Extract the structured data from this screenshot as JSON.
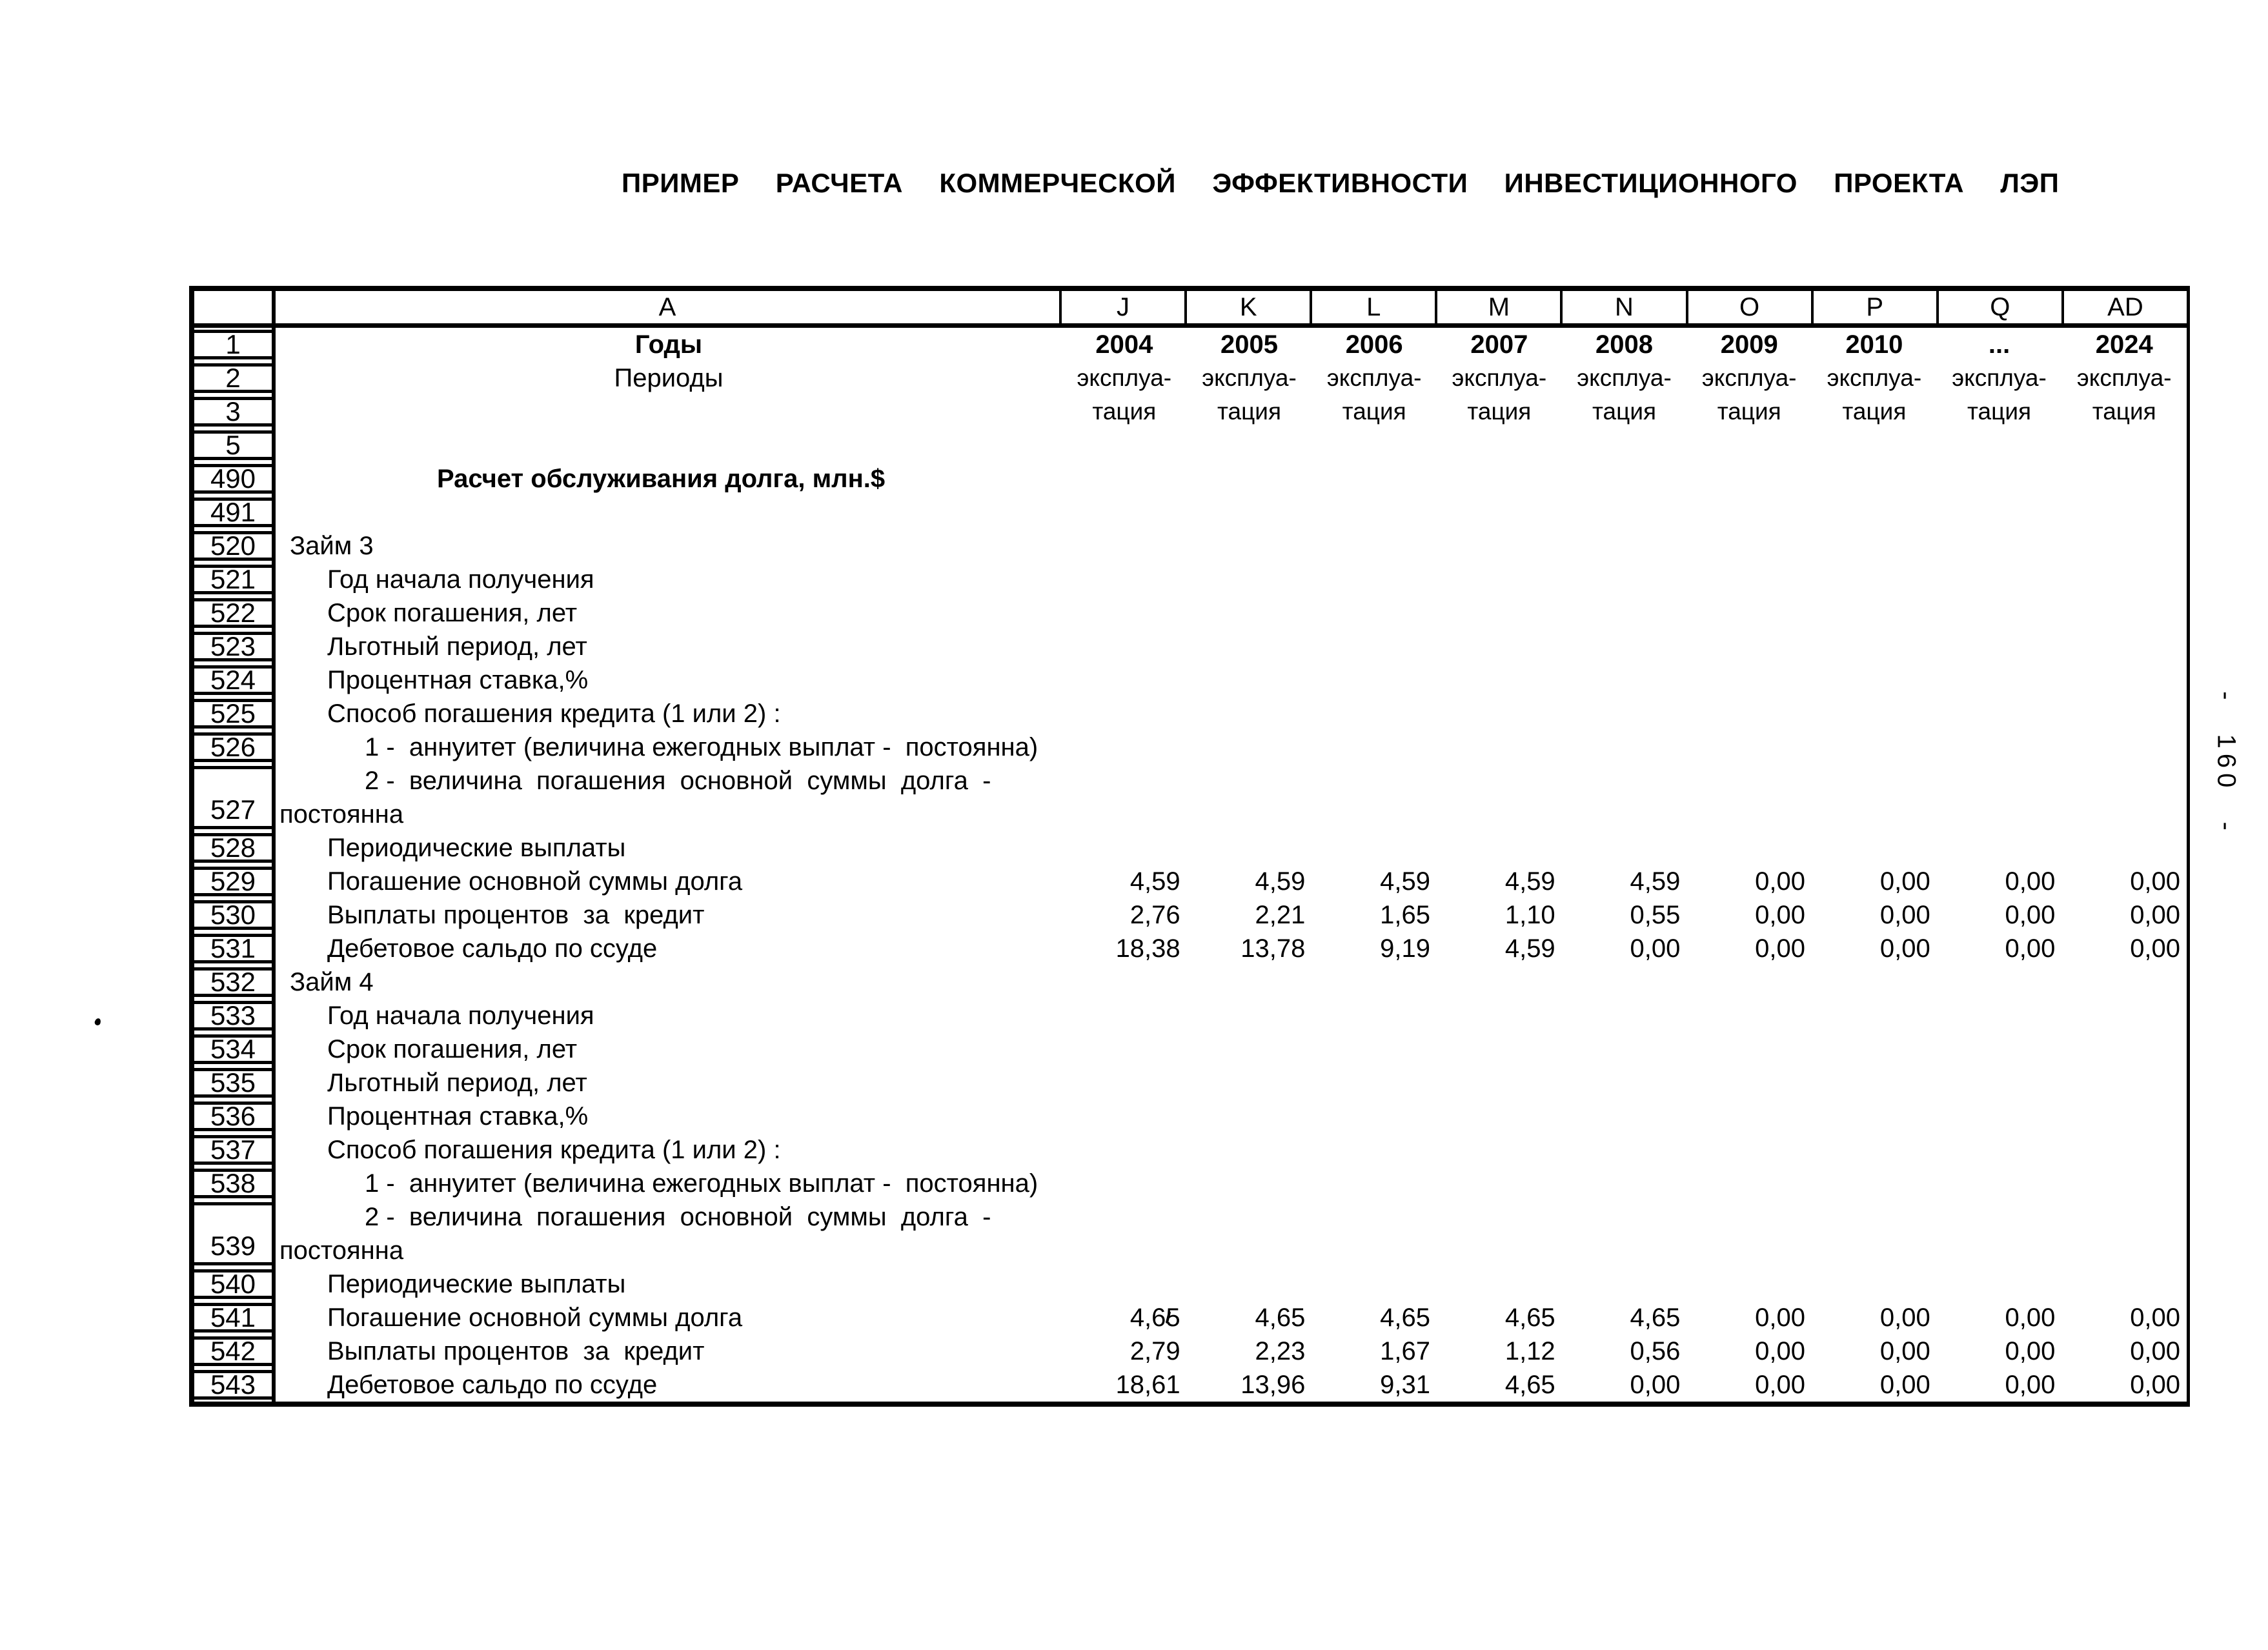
{
  "page": {
    "title": "ПРИМЕР  РАСЧЕТА  КОММЕРЧЕСКОЙ  ЭФФЕКТИВНОСТИ  ИНВЕСТИЦИОННОГО  ПРОЕКТА  ЛЭП",
    "page_number_vertical": "- 160 -"
  },
  "table": {
    "column_letters": [
      "A",
      "J",
      "K",
      "L",
      "M",
      "N",
      "O",
      "P",
      "Q",
      "AD"
    ],
    "rows": [
      {
        "num": "1",
        "a": "Годы",
        "indent": "center",
        "a_bold": true,
        "v_align": "center",
        "v_bold": true,
        "values": [
          "2004",
          "2005",
          "2006",
          "2007",
          "2008",
          "2009",
          "2010",
          "...",
          "2024"
        ]
      },
      {
        "num": "2",
        "a": "Периоды",
        "indent": "center",
        "v_align": "center",
        "v_small": true,
        "values": [
          "эксплуа-",
          "эксплуа-",
          "эксплуа-",
          "эксплуа-",
          "эксплуа-",
          "эксплуа-",
          "эксплуа-",
          "эксплуа-",
          "эксплуа-"
        ]
      },
      {
        "num": "3",
        "v_align": "center",
        "v_small": true,
        "values": [
          "тация",
          "тация",
          "тация",
          "тация",
          "тация",
          "тация",
          "тация",
          "тация",
          "тация"
        ]
      },
      {
        "num": "5"
      },
      {
        "num": "490",
        "a": "Расчет обслуживания долга, млн.$",
        "indent": "title",
        "a_bold": true
      },
      {
        "num": "491"
      },
      {
        "num": "520",
        "a": "Займ 3",
        "indent": 1
      },
      {
        "num": "521",
        "a": "Год начала получения",
        "indent": 2
      },
      {
        "num": "522",
        "a": "Срок погашения, лет",
        "indent": 2
      },
      {
        "num": "523",
        "a": "Льготный период, лет",
        "indent": 2
      },
      {
        "num": "524",
        "a": "Процентная ставка,%",
        "indent": 2
      },
      {
        "num": "525",
        "a": "Способ погашения кредита (1 или 2) :",
        "indent": 2
      },
      {
        "num": "526",
        "a": "1 -  аннуитет (величина ежегодных выплат -  постоянна)",
        "indent": 3
      },
      {
        "num": "527",
        "tall": true,
        "indent": 3,
        "a": "2 -  величина  погашения  основной  суммы  долга  -",
        "a2": "постоянна"
      },
      {
        "num": "528",
        "a": "Периодические выплаты",
        "indent": 2
      },
      {
        "num": "529",
        "a": "Погашение основной суммы долга",
        "indent": 2,
        "values": [
          "4,59",
          "4,59",
          "4,59",
          "4,59",
          "4,59",
          "0,00",
          "0,00",
          "0,00",
          "0,00"
        ]
      },
      {
        "num": "530",
        "a": "Выплаты процентов  за  кредит",
        "indent": 2,
        "values": [
          "2,76",
          "2,21",
          "1,65",
          "1,10",
          "0,55",
          "0,00",
          "0,00",
          "0,00",
          "0,00"
        ]
      },
      {
        "num": "531",
        "a": "Дебетовое сальдо по ссуде",
        "indent": 2,
        "values": [
          "18,38",
          "13,78",
          "9,19",
          "4,59",
          "0,00",
          "0,00",
          "0,00",
          "0,00",
          "0,00"
        ]
      },
      {
        "num": "532",
        "a": "Займ 4",
        "indent": 1
      },
      {
        "num": "533",
        "a": "Год начала получения",
        "indent": 2
      },
      {
        "num": "534",
        "a": "Срок погашения, лет",
        "indent": 2
      },
      {
        "num": "535",
        "a": "Льготный период, лет",
        "indent": 2
      },
      {
        "num": "536",
        "a": "Процентная ставка,%",
        "indent": 2
      },
      {
        "num": "537",
        "a": "Способ погашения кредита (1 или 2) :",
        "indent": 2
      },
      {
        "num": "538",
        "a": "1 -  аннуитет (величина ежегодных выплат -  постоянна)",
        "indent": 3
      },
      {
        "num": "539",
        "tall": true,
        "indent": 3,
        "a": "2 -  величина  погашения  основной  суммы  долга  -",
        "a2": "постоянна"
      },
      {
        "num": "540",
        "a": "Периодические выплаты",
        "indent": 2
      },
      {
        "num": "541",
        "a": "Погашение основной суммы долга",
        "indent": 2,
        "values": [
          "4,65",
          "4,65",
          "4,65",
          "4,65",
          "4,65",
          "0,00",
          "0,00",
          "0,00",
          "0,00"
        ]
      },
      {
        "num": "542",
        "a": "Выплаты процентов  за  кредит",
        "indent": 2,
        "values": [
          "2,79",
          "2,23",
          "1,67",
          "1,12",
          "0,56",
          "0,00",
          "0,00",
          "0,00",
          "0,00"
        ]
      },
      {
        "num": "543",
        "a": "Дебетовое сальдо по ссуде",
        "indent": 2,
        "values": [
          "18,61",
          "13,96",
          "9,31",
          "4,65",
          "0,00",
          "0,00",
          "0,00",
          "0,00",
          "0,00"
        ]
      }
    ]
  }
}
